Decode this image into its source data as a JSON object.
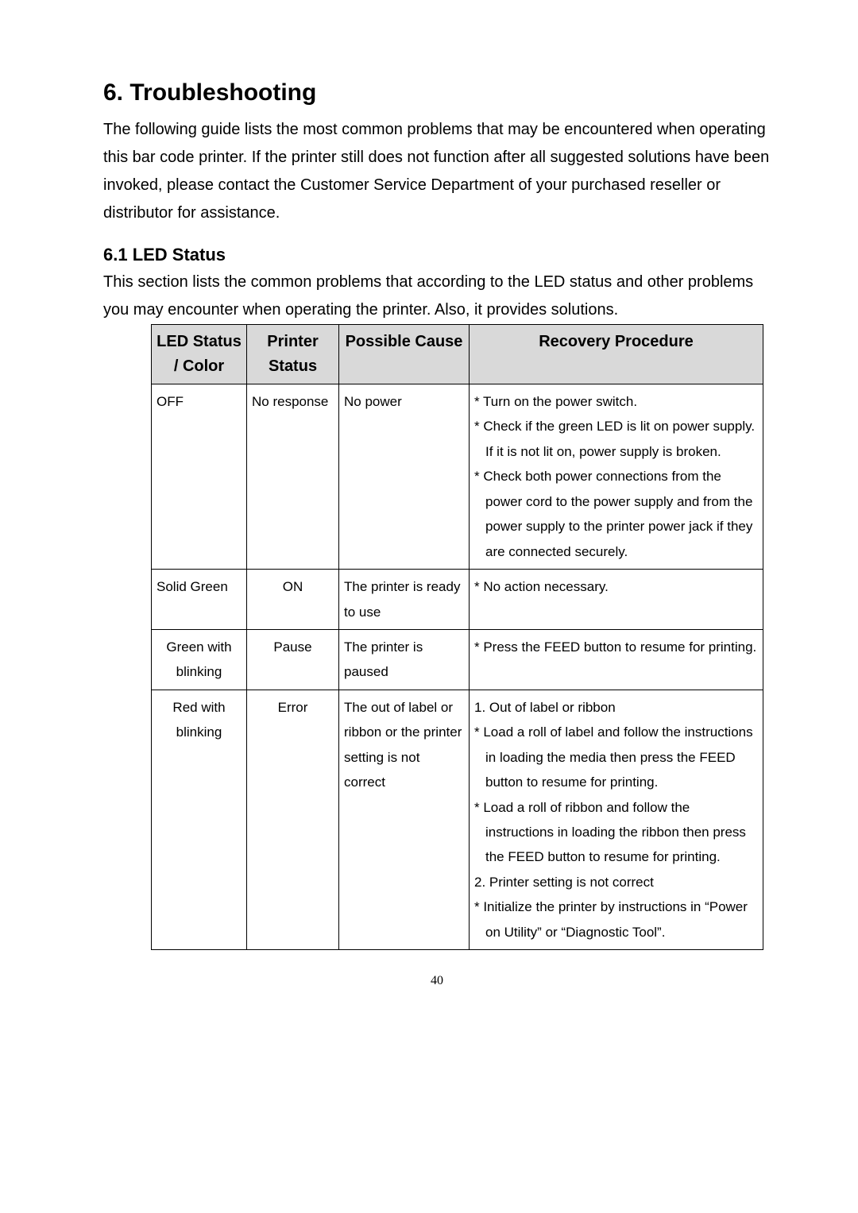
{
  "heading": "6. Troubleshooting",
  "intro": "The following guide lists the most common problems that may be encountered when operating this bar code printer. If the printer still does not function after all suggested solutions have been invoked, please contact the Customer Service Department of your purchased reseller or distributor for assistance.",
  "subheading": "6.1 LED Status",
  "sub_intro": "This section lists the common problems that according to the LED status and other problems you may encounter when operating the printer. Also, it provides solutions.",
  "table": {
    "headers": {
      "led": "LED Status / Color",
      "printer": "Printer Status",
      "cause": "Possible Cause",
      "recovery": "Recovery Procedure"
    },
    "rows": [
      {
        "led": "OFF",
        "led_align": "left",
        "printer": "No response",
        "printer_align": "left",
        "cause": "No power",
        "recovery": "* Turn on the power switch.\n* Check if the green LED is lit on power supply. If it is not lit on, power supply is broken.\n* Check both power connections from the power cord to the power supply and from the power supply to the printer power jack if they are connected securely."
      },
      {
        "led": "Solid Green",
        "led_align": "left",
        "printer": "ON",
        "printer_align": "center",
        "cause": "The printer is ready to use",
        "recovery": "* No action necessary."
      },
      {
        "led": "Green with blinking",
        "led_align": "center",
        "printer": "Pause",
        "printer_align": "center",
        "cause": "The printer is paused",
        "recovery": "* Press the FEED button to resume for printing."
      },
      {
        "led": "Red with blinking",
        "led_align": "center",
        "printer": "Error",
        "printer_align": "center",
        "cause": "The out of label or ribbon or the printer setting is not correct",
        "recovery": "1. Out of label or ribbon\n* Load a roll of label and follow the instructions in loading the media then press the FEED button to resume for printing.\n* Load a roll of ribbon and follow the instructions in loading the ribbon then press the FEED button to resume for printing.\n2. Printer setting is not correct\n* Initialize the printer by instructions in “Power on Utility” or “Diagnostic Tool”."
      }
    ]
  },
  "page_number": "40",
  "colors": {
    "header_bg": "#d9d9d9",
    "border": "#000000",
    "text": "#000000",
    "page_bg": "#ffffff"
  }
}
